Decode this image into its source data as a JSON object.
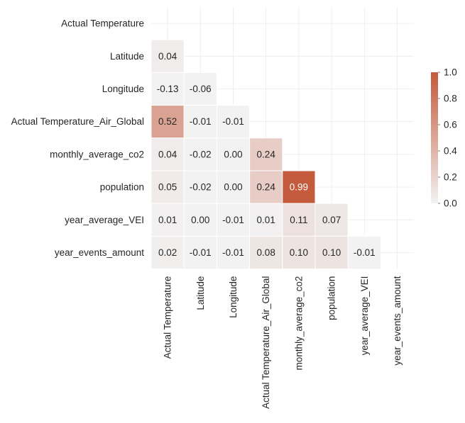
{
  "chart_data": {
    "type": "heatmap",
    "title": "",
    "variables": [
      "Actual Temperature",
      "Latitude",
      "Longitude",
      "Actual Temperature_Air_Global",
      "monthly_average_co2",
      "population",
      "year_average_VEI",
      "year_events_amount"
    ],
    "mask": "upper-triangle-including-diagonal",
    "lower_triangle": [
      [],
      [
        0.04
      ],
      [
        -0.13,
        -0.06
      ],
      [
        0.52,
        -0.01,
        -0.01
      ],
      [
        0.04,
        -0.02,
        -0.0,
        0.24
      ],
      [
        0.05,
        -0.02,
        -0.0,
        0.24,
        0.99
      ],
      [
        0.01,
        -0.0,
        -0.01,
        0.01,
        0.11,
        0.07
      ],
      [
        0.02,
        -0.01,
        -0.01,
        0.08,
        0.1,
        0.1,
        -0.01
      ]
    ],
    "value_format": "2 decimals",
    "colorbar": {
      "range": [
        0.0,
        1.0
      ],
      "ticks": [
        "0.0",
        "0.2",
        "0.4",
        "0.6",
        "0.8",
        "1.0"
      ],
      "position": "right"
    },
    "colormap": {
      "low": "#f2f2f2",
      "high": "#c4593a",
      "text_dark": "#262626",
      "text_light": "#ffffff"
    },
    "grid": true,
    "grid_color": "#ebebeb",
    "cell_border_color": "#ffffff"
  }
}
